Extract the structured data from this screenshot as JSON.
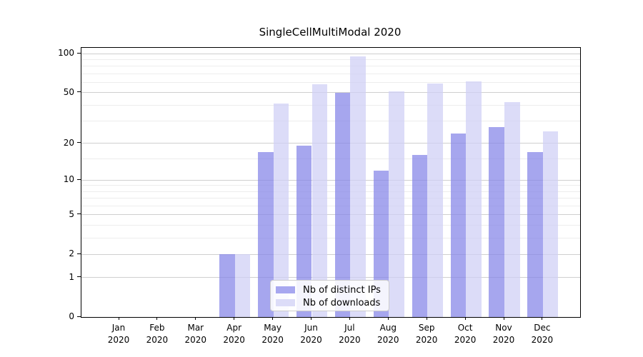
{
  "title": "SingleCellMultiModal 2020",
  "legend": {
    "items": [
      {
        "label": "Nb of distinct IPs",
        "color": "#a7a7f0"
      },
      {
        "label": "Nb of downloads",
        "color": "#dcdcf8"
      }
    ]
  },
  "chart_data": {
    "type": "bar",
    "title": "SingleCellMultiModal 2020",
    "categories": [
      "Jan",
      "Feb",
      "Mar",
      "Apr",
      "May",
      "Jun",
      "Jul",
      "Aug",
      "Sep",
      "Oct",
      "Nov",
      "Dec"
    ],
    "year_label": "2020",
    "series": [
      {
        "name": "Nb of distinct IPs",
        "color": "rgba(131,131,232,0.72)",
        "values": [
          0,
          0,
          0,
          2,
          17,
          19,
          50,
          12,
          16,
          24,
          27,
          17
        ]
      },
      {
        "name": "Nb of downloads",
        "color": "rgba(206,206,245,0.72)",
        "values": [
          0,
          0,
          0,
          2,
          41,
          58,
          95,
          51,
          59,
          61,
          42,
          25
        ]
      }
    ],
    "y_scale": "log1p",
    "y_ticks": [
      0,
      1,
      2,
      5,
      10,
      20,
      50,
      100
    ],
    "y_minor_ticks": [
      3,
      4,
      6,
      7,
      8,
      9,
      15,
      30,
      40,
      60,
      70,
      80,
      90
    ],
    "ylim": [
      0,
      110
    ],
    "grid": true,
    "legend_position": "lower center"
  }
}
